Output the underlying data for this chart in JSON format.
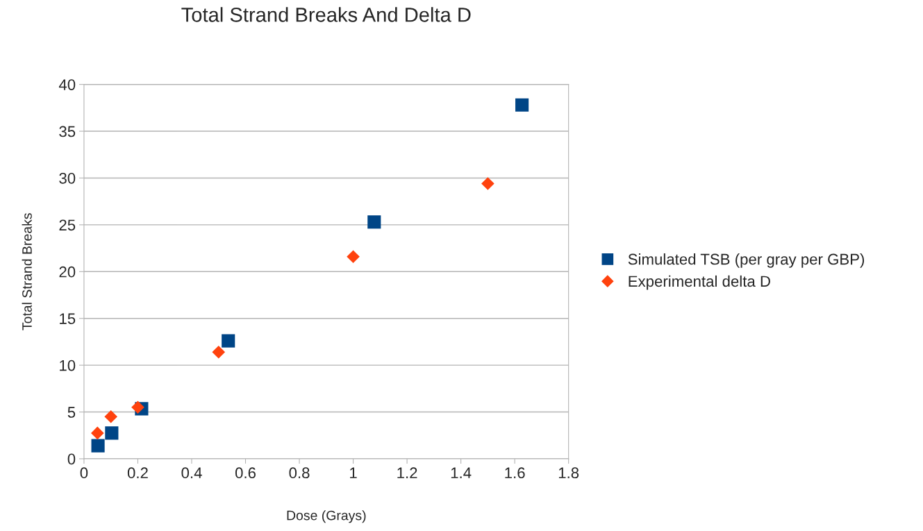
{
  "chart_data": {
    "type": "scatter",
    "title": "Total Strand Breaks And Delta D",
    "xlabel": "Dose (Grays)",
    "ylabel": "Total Strand Breaks",
    "xlim": [
      0,
      1.8
    ],
    "xticks": [
      0,
      0.2,
      0.4,
      0.6,
      0.8,
      1,
      1.2,
      1.4,
      1.6,
      1.8
    ],
    "ylim": [
      0,
      40
    ],
    "yticks": [
      0,
      5,
      10,
      15,
      20,
      25,
      30,
      35,
      40
    ],
    "grid": "y",
    "legend": "right",
    "series": [
      {
        "name": "Simulated TSB (per gray per GBP)",
        "color": "#004586",
        "marker": "square",
        "x": [
          0.052,
          0.103,
          0.214,
          0.536,
          1.078,
          1.627
        ],
        "values": [
          1.4,
          2.75,
          5.35,
          12.6,
          25.3,
          37.8
        ]
      },
      {
        "name": "Experimental delta D",
        "color": "#ff420e",
        "marker": "diamond",
        "x": [
          0.05,
          0.1,
          0.2,
          0.5,
          1.0,
          1.5
        ],
        "values": [
          2.75,
          4.5,
          5.5,
          11.4,
          21.6,
          29.4
        ]
      }
    ]
  }
}
